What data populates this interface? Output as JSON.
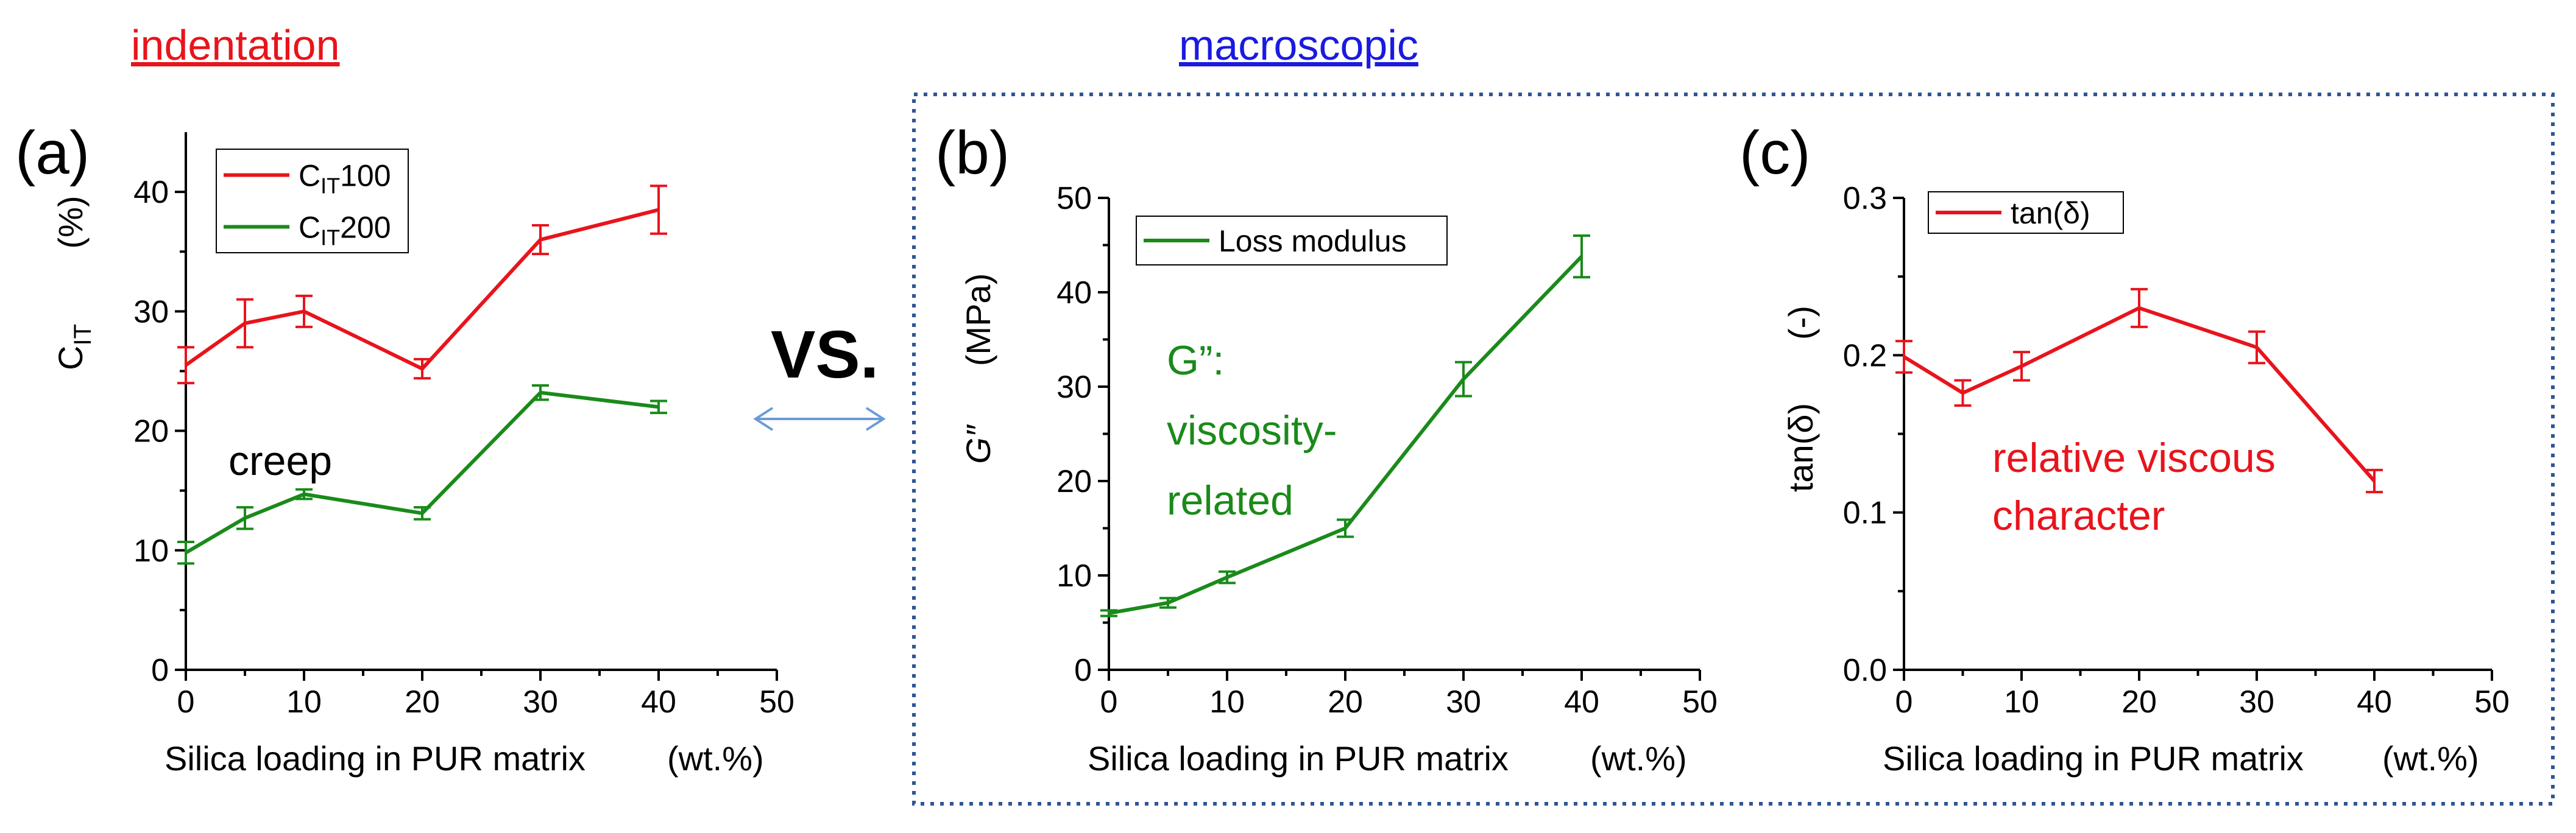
{
  "headers": {
    "left": "indentation",
    "right": "macroscopic"
  },
  "vs_label": "VS.",
  "colors": {
    "red": "#e8141c",
    "green": "#1a8a1a",
    "blue": "#1a1ae0",
    "border": "#2f5597",
    "arrow": "#6a9bd8"
  },
  "chart_data": [
    {
      "panel": "(a)",
      "type": "line",
      "x": [
        0,
        5,
        10,
        20,
        30,
        40
      ],
      "xlim": [
        0,
        50
      ],
      "xticks": [
        0,
        10,
        20,
        30,
        40,
        50
      ],
      "ylim": [
        0,
        45
      ],
      "yticks": [
        0,
        10,
        20,
        30,
        40
      ],
      "xlabel": "Silica loading in PUR matrix",
      "xunit": "(wt.%)",
      "ylabel_main": "C",
      "ylabel_sub": "IT",
      "yunit": "(%)",
      "series": [
        {
          "name_main": "C",
          "name_sub": "IT",
          "name_tail": "100",
          "color": "#e8141c",
          "values": [
            25.5,
            29.0,
            30.0,
            25.2,
            36.0,
            38.5
          ],
          "errors": [
            1.5,
            2.0,
            1.3,
            0.8,
            1.2,
            2.0
          ]
        },
        {
          "name_main": "C",
          "name_sub": "IT",
          "name_tail": "200",
          "color": "#1a8a1a",
          "values": [
            9.8,
            12.7,
            14.7,
            13.1,
            23.2,
            22.0
          ],
          "errors": [
            0.9,
            0.9,
            0.4,
            0.5,
            0.6,
            0.5
          ]
        }
      ],
      "annotation": {
        "text": "creep",
        "color": "#000000"
      }
    },
    {
      "panel": "(b)",
      "type": "line",
      "x": [
        0,
        5,
        10,
        20,
        30,
        40
      ],
      "xlim": [
        0,
        50
      ],
      "xticks": [
        0,
        10,
        20,
        30,
        40,
        50
      ],
      "ylim": [
        0,
        50
      ],
      "yticks": [
        0,
        10,
        20,
        30,
        40,
        50
      ],
      "xlabel": "Silica loading in PUR matrix",
      "xunit": "(wt.%)",
      "ylabel_main": "G″",
      "ylabel_sub": "",
      "yunit": "(MPa)",
      "series": [
        {
          "name": "Loss modulus",
          "color": "#1a8a1a",
          "values": [
            6.0,
            7.1,
            9.8,
            15.0,
            30.8,
            43.8
          ],
          "errors": [
            0.3,
            0.5,
            0.6,
            0.9,
            1.8,
            2.2
          ]
        }
      ],
      "annotation": {
        "lines": [
          "G”:",
          "viscosity-",
          "related"
        ],
        "color": "#1a8a1a"
      }
    },
    {
      "panel": "(c)",
      "type": "line",
      "x": [
        0,
        5,
        10,
        20,
        30,
        40
      ],
      "xlim": [
        0,
        50
      ],
      "xticks": [
        0,
        10,
        20,
        30,
        40,
        50
      ],
      "ylim": [
        0,
        0.3
      ],
      "yticks": [
        "0.0",
        "0.1",
        "0.2",
        "0.3"
      ],
      "xlabel": "Silica loading in PUR matrix",
      "xunit": "(wt.%)",
      "ylabel_main": "tan(δ)",
      "ylabel_sub": "",
      "yunit": "(-)",
      "series": [
        {
          "name": "tan(δ)",
          "color": "#e8141c",
          "values": [
            0.199,
            0.176,
            0.193,
            0.23,
            0.205,
            0.12
          ],
          "errors": [
            0.01,
            0.008,
            0.009,
            0.012,
            0.01,
            0.007
          ]
        }
      ],
      "annotation": {
        "lines": [
          "relative viscous",
          "character"
        ],
        "color": "#e8141c"
      }
    }
  ]
}
